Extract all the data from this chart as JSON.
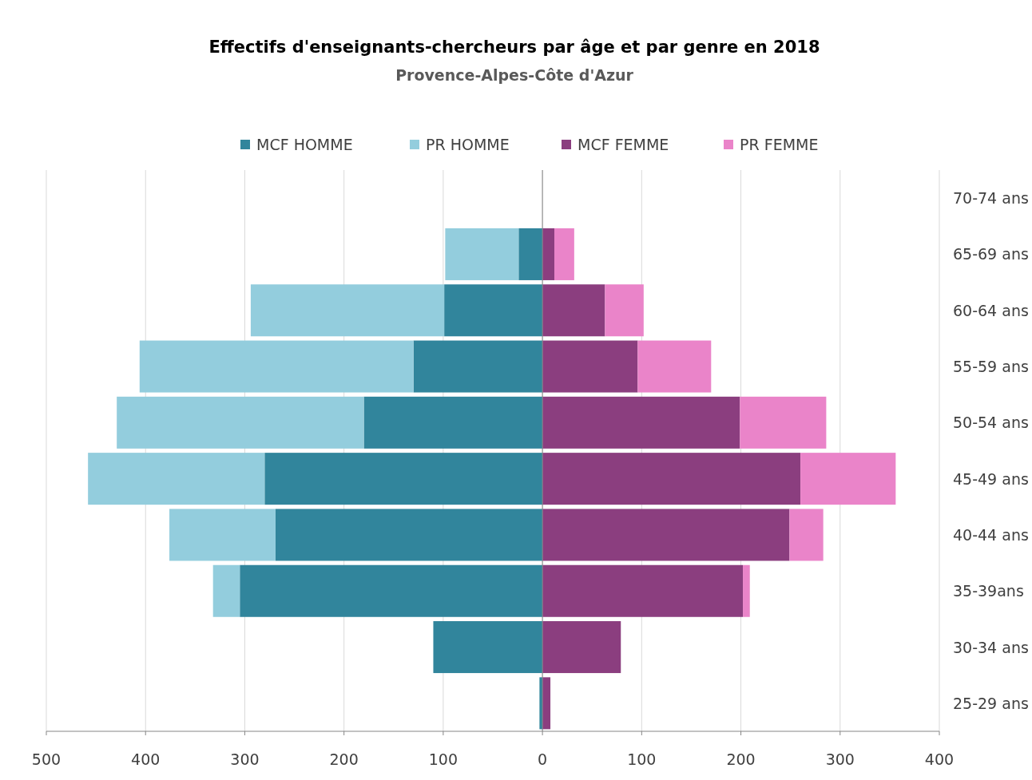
{
  "chart_data": {
    "type": "bar",
    "orientation": "horizontal",
    "stacked": true,
    "title": "Effectifs d'enseignants-chercheurs par âge et par genre en 2018",
    "subtitle": "Provence-Alpes-Côte d'Azur",
    "categories": [
      "70-74 ans",
      "65-69 ans",
      "60-64 ans",
      "55-59 ans",
      "50-54 ans",
      "45-49 ans",
      "40-44 ans",
      "35-39ans",
      "30-34 ans",
      "25-29 ans"
    ],
    "series": [
      {
        "name": "MCF HOMME",
        "color": "#31859c",
        "values": [
          null,
          -24,
          -99,
          -130,
          -180,
          -280,
          -269,
          -305,
          -110,
          -3
        ]
      },
      {
        "name": "PR HOMME",
        "color": "#93cddd",
        "values": [
          null,
          -74,
          -195,
          -276,
          -249,
          -178,
          -107,
          -27,
          null,
          null
        ]
      },
      {
        "name": "MCF FEMME",
        "color": "#8b3e7f",
        "values": [
          null,
          12,
          63,
          96,
          199,
          260,
          249,
          202,
          79,
          8
        ]
      },
      {
        "name": "PR FEMME",
        "color": "#ea84c9",
        "values": [
          null,
          20,
          39,
          74,
          87,
          96,
          34,
          7,
          null,
          null
        ]
      }
    ],
    "xlim": [
      -500,
      400
    ],
    "xticks": [
      {
        "value": -500,
        "label": "500"
      },
      {
        "value": -400,
        "label": "400"
      },
      {
        "value": -300,
        "label": "300"
      },
      {
        "value": -200,
        "label": "200"
      },
      {
        "value": -100,
        "label": "100"
      },
      0,
      100,
      200,
      300,
      400
    ],
    "grid": "x",
    "legend": "top"
  }
}
